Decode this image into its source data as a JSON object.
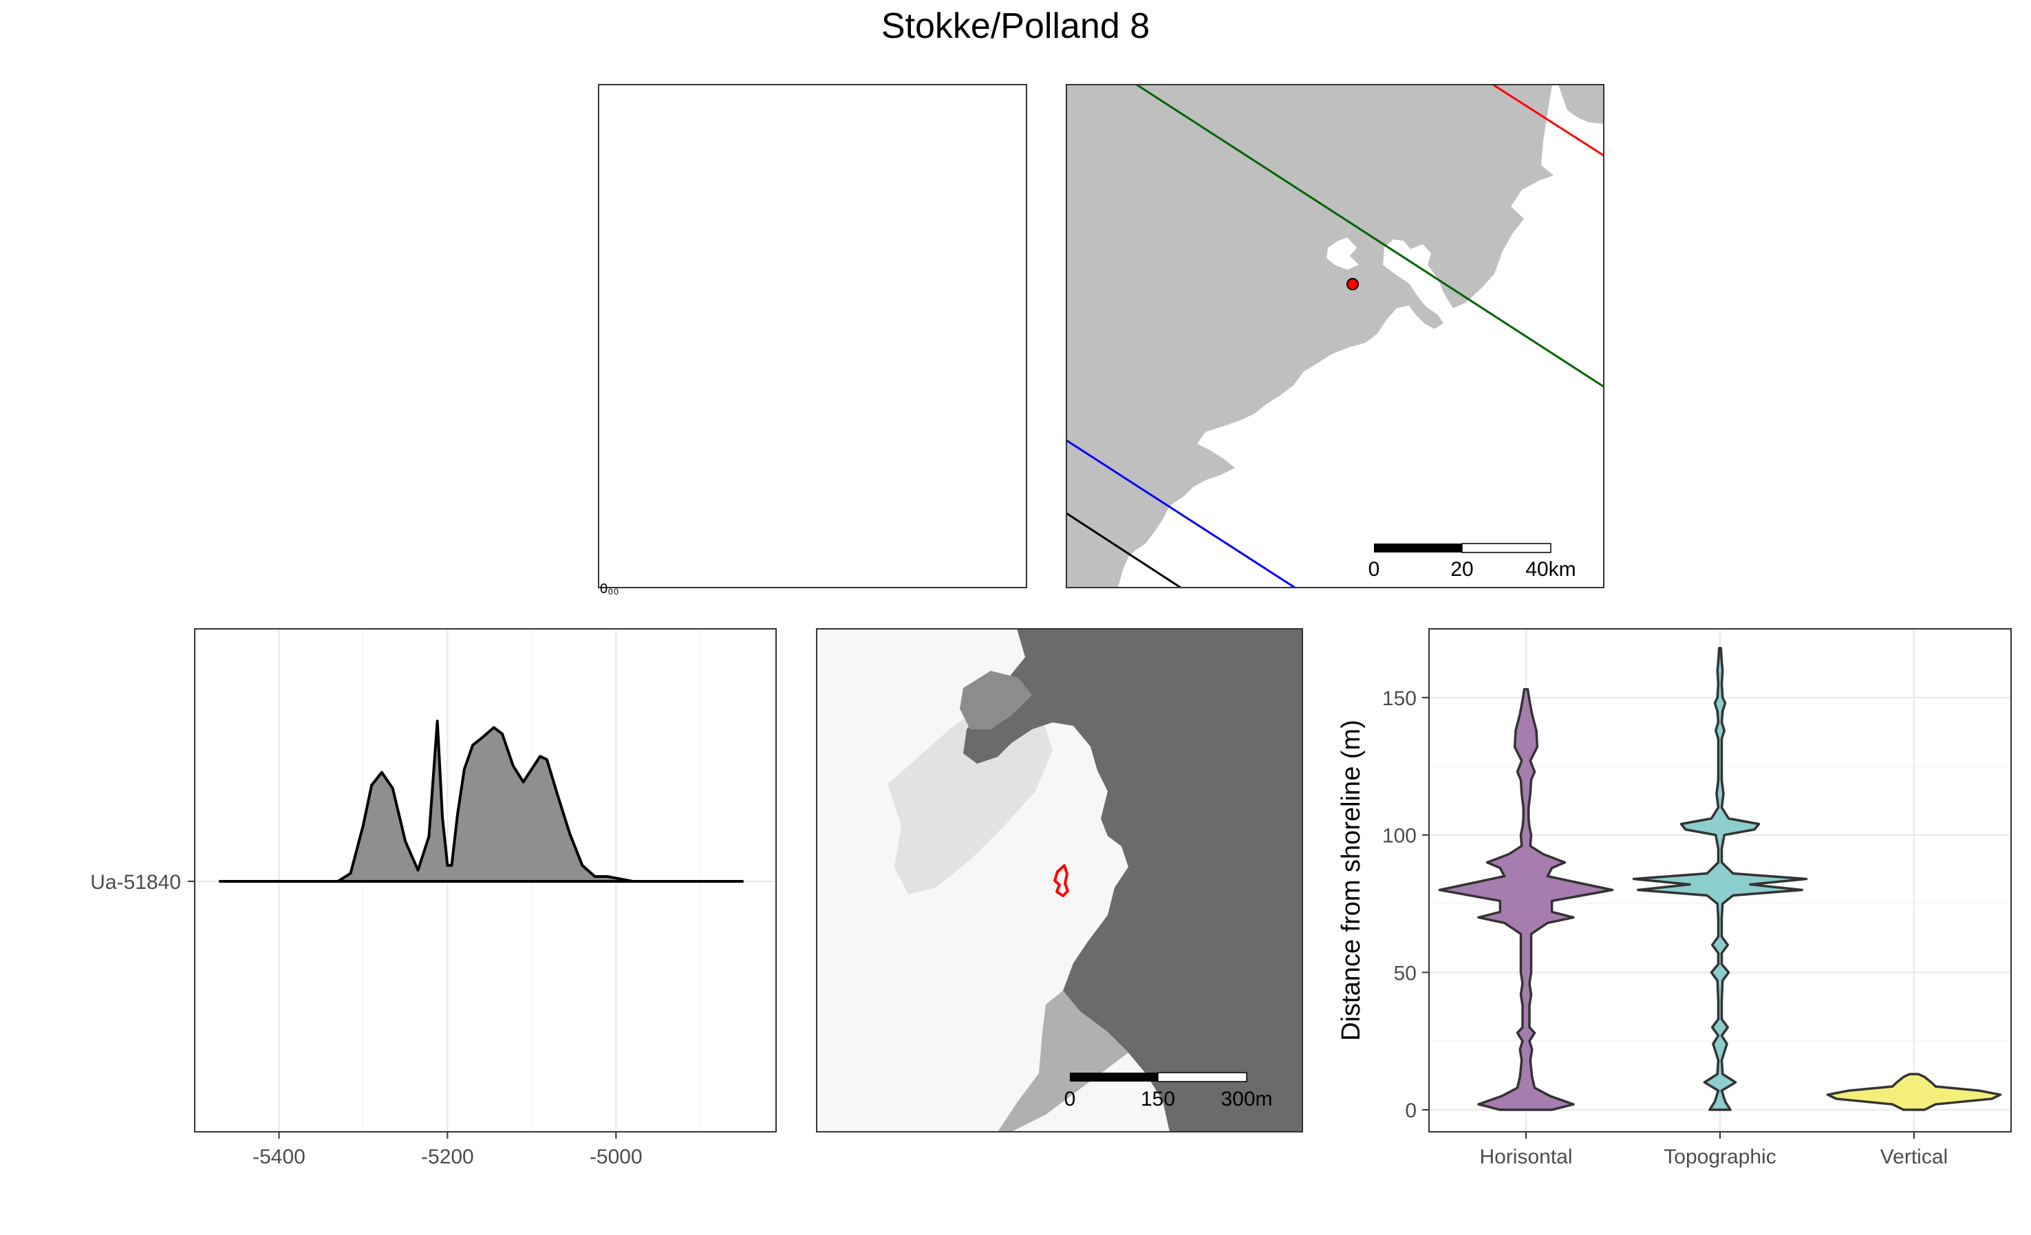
{
  "page": {
    "title": "Stokke/Polland 8"
  },
  "overview_map": {
    "scale_labels": [
      "0",
      "20",
      "40km"
    ]
  },
  "local_map": {
    "scale_labels": [
      "0",
      "150",
      "300m"
    ]
  },
  "chart_data": [
    {
      "type": "area",
      "title": "",
      "xlabel": "",
      "ylabel": "",
      "xlim": [
        -5500,
        -4810
      ],
      "xticks": [
        -5400,
        -5200,
        -5000
      ],
      "yticks": [
        "Ua-51840"
      ],
      "grid": true,
      "series": [
        {
          "name": "Ua-51840",
          "x": [
            -5470,
            -5330,
            -5315,
            -5300,
            -5290,
            -5278,
            -5265,
            -5250,
            -5235,
            -5222,
            -5212,
            -5206,
            -5200,
            -5195,
            -5188,
            -5180,
            -5170,
            -5158,
            -5145,
            -5135,
            -5122,
            -5110,
            -5100,
            -5090,
            -5082,
            -5070,
            -5055,
            -5040,
            -5025,
            -5010,
            -5000,
            -4980,
            -4960,
            -4850
          ],
          "y": [
            0,
            0,
            0.05,
            0.35,
            0.6,
            0.68,
            0.58,
            0.25,
            0.07,
            0.28,
            1.0,
            0.4,
            0.1,
            0.1,
            0.42,
            0.7,
            0.85,
            0.9,
            0.96,
            0.92,
            0.72,
            0.62,
            0.7,
            0.78,
            0.76,
            0.55,
            0.3,
            0.1,
            0.03,
            0.03,
            0.02,
            0,
            0,
            0
          ]
        }
      ]
    },
    {
      "type": "violin",
      "title": "",
      "xlabel": "",
      "ylabel": "Distance from shoreline (m)",
      "ylim": [
        -8,
        175
      ],
      "yticks": [
        0,
        50,
        100,
        150
      ],
      "categories": [
        "Horisontal",
        "Topographic",
        "Vertical"
      ],
      "colors": [
        "#A77CAE",
        "#8CCDCD",
        "#F5EE7A"
      ],
      "grid": true,
      "series": [
        {
          "name": "Horisontal",
          "y": [
            0,
            2,
            5,
            8,
            12,
            18,
            22,
            25,
            28,
            30,
            33,
            38,
            42,
            46,
            50,
            55,
            60,
            64,
            68,
            70,
            72,
            76,
            80,
            82,
            85,
            88,
            90,
            93,
            96,
            100,
            103,
            106,
            110,
            115,
            120,
            123,
            127,
            132,
            138,
            144,
            149,
            153
          ],
          "w": [
            0.3,
            0.55,
            0.28,
            0.1,
            0.07,
            0.05,
            0.07,
            0.04,
            0.1,
            0.04,
            0.04,
            0.04,
            0.06,
            0.04,
            0.06,
            0.06,
            0.06,
            0.06,
            0.25,
            0.55,
            0.3,
            0.3,
            1.0,
            0.7,
            0.25,
            0.3,
            0.45,
            0.2,
            0.05,
            0.06,
            0.04,
            0.03,
            0.03,
            0.05,
            0.06,
            0.1,
            0.05,
            0.13,
            0.12,
            0.07,
            0.04,
            0.02
          ]
        },
        {
          "name": "Topographic",
          "y": [
            0,
            3,
            7,
            10,
            13,
            18,
            24,
            27,
            30,
            33,
            40,
            47,
            50,
            53,
            57,
            60,
            63,
            70,
            75,
            78,
            80,
            82,
            84,
            86,
            90,
            95,
            100,
            102,
            104,
            106,
            110,
            115,
            120,
            125,
            130,
            135,
            138,
            141,
            145,
            148,
            150,
            155,
            160,
            163,
            168
          ],
          "w": [
            0.12,
            0.06,
            0.02,
            0.18,
            0.03,
            0.02,
            0.08,
            0.02,
            0.09,
            0.02,
            0.02,
            0.03,
            0.1,
            0.02,
            0.02,
            0.09,
            0.02,
            0.02,
            0.03,
            0.15,
            0.95,
            0.35,
            1.0,
            0.15,
            0.02,
            0.02,
            0.05,
            0.4,
            0.45,
            0.1,
            0.02,
            0.04,
            0.02,
            0.02,
            0.02,
            0.02,
            0.05,
            0.02,
            0.03,
            0.06,
            0.03,
            0.02,
            0.03,
            0.02,
            0.01
          ]
        },
        {
          "name": "Vertical",
          "y": [
            0,
            2,
            4,
            5.5,
            7,
            8.5,
            10,
            12,
            13
          ],
          "w": [
            0.12,
            0.25,
            0.9,
            1.0,
            0.75,
            0.25,
            0.2,
            0.12,
            0.05
          ]
        }
      ]
    }
  ]
}
